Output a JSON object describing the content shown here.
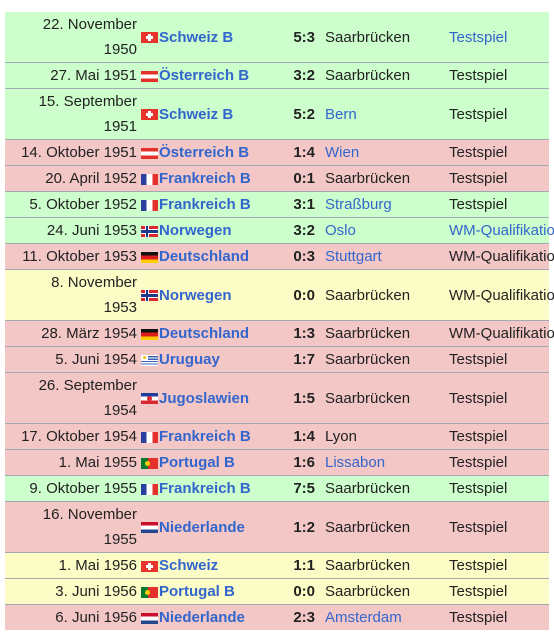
{
  "matches": [
    {
      "date_line1": "22. November",
      "date_line2": "1950",
      "flag": "switzerland-flag-icon",
      "opponent": "Schweiz B",
      "score": "5:3",
      "venue": "Saarbrücken",
      "venue_link": false,
      "type": "Testspiel",
      "type_link": true,
      "result": "win"
    },
    {
      "date_line1": "27. Mai 1951",
      "date_line2": "",
      "flag": "austria-flag-icon",
      "opponent": "Österreich B",
      "score": "3:2",
      "venue": "Saarbrücken",
      "venue_link": false,
      "type": "Testspiel",
      "type_link": false,
      "result": "win"
    },
    {
      "date_line1": "15. September",
      "date_line2": "1951",
      "flag": "switzerland-flag-icon",
      "opponent": "Schweiz B",
      "score": "5:2",
      "venue": "Bern",
      "venue_link": true,
      "type": "Testspiel",
      "type_link": false,
      "result": "win"
    },
    {
      "date_line1": "14. Oktober 1951",
      "date_line2": "",
      "flag": "austria-flag-icon",
      "opponent": "Österreich B",
      "score": "1:4",
      "venue": "Wien",
      "venue_link": true,
      "type": "Testspiel",
      "type_link": false,
      "result": "loss"
    },
    {
      "date_line1": "20. April 1952",
      "date_line2": "",
      "flag": "france-flag-icon",
      "opponent": "Frankreich B",
      "score": "0:1",
      "venue": "Saarbrücken",
      "venue_link": false,
      "type": "Testspiel",
      "type_link": false,
      "result": "loss"
    },
    {
      "date_line1": "5. Oktober 1952",
      "date_line2": "",
      "flag": "france-flag-icon",
      "opponent": "Frankreich B",
      "score": "3:1",
      "venue": "Straßburg",
      "venue_link": true,
      "type": "Testspiel",
      "type_link": false,
      "result": "win"
    },
    {
      "date_line1": "24. Juni 1953",
      "date_line2": "",
      "flag": "norway-flag-icon",
      "opponent": "Norwegen",
      "score": "3:2",
      "venue": "Oslo",
      "venue_link": true,
      "type": "WM-Qualifikation",
      "type_link": true,
      "result": "win"
    },
    {
      "date_line1": "11. Oktober 1953",
      "date_line2": "",
      "flag": "germany-flag-icon",
      "opponent": "Deutschland",
      "score": "0:3",
      "venue": "Stuttgart",
      "venue_link": true,
      "type": "WM-Qualifikation",
      "type_link": false,
      "result": "loss"
    },
    {
      "date_line1": "8. November",
      "date_line2": "1953",
      "flag": "norway-flag-icon",
      "opponent": "Norwegen",
      "score": "0:0",
      "venue": "Saarbrücken",
      "venue_link": false,
      "type": "WM-Qualifikation",
      "type_link": false,
      "result": "draw"
    },
    {
      "date_line1": "28. März 1954",
      "date_line2": "",
      "flag": "germany-flag-icon",
      "opponent": "Deutschland",
      "score": "1:3",
      "venue": "Saarbrücken",
      "venue_link": false,
      "type": "WM-Qualifikation",
      "type_link": false,
      "result": "loss"
    },
    {
      "date_line1": "5. Juni 1954",
      "date_line2": "",
      "flag": "uruguay-flag-icon",
      "opponent": "Uruguay",
      "score": "1:7",
      "venue": "Saarbrücken",
      "venue_link": false,
      "type": "Testspiel",
      "type_link": false,
      "result": "loss"
    },
    {
      "date_line1": "26. September",
      "date_line2": "1954",
      "flag": "yugoslavia-flag-icon",
      "opponent": "Jugoslawien",
      "score": "1:5",
      "venue": "Saarbrücken",
      "venue_link": false,
      "type": "Testspiel",
      "type_link": false,
      "result": "loss"
    },
    {
      "date_line1": "17. Oktober 1954",
      "date_line2": "",
      "flag": "france-flag-icon",
      "opponent": "Frankreich B",
      "score": "1:4",
      "venue": "Lyon",
      "venue_link": false,
      "type": "Testspiel",
      "type_link": false,
      "result": "loss"
    },
    {
      "date_line1": "1. Mai 1955",
      "date_line2": "",
      "flag": "portugal-flag-icon",
      "opponent": "Portugal B",
      "score": "1:6",
      "venue": "Lissabon",
      "venue_link": true,
      "type": "Testspiel",
      "type_link": false,
      "result": "loss"
    },
    {
      "date_line1": "9. Oktober 1955",
      "date_line2": "",
      "flag": "france-flag-icon",
      "opponent": "Frankreich B",
      "score": "7:5",
      "venue": "Saarbrücken",
      "venue_link": false,
      "type": "Testspiel",
      "type_link": false,
      "result": "win"
    },
    {
      "date_line1": "16. November",
      "date_line2": "1955",
      "flag": "netherlands-flag-icon",
      "opponent": "Niederlande",
      "score": "1:2",
      "venue": "Saarbrücken",
      "venue_link": false,
      "type": "Testspiel",
      "type_link": false,
      "result": "loss"
    },
    {
      "date_line1": "1. Mai 1956",
      "date_line2": "",
      "flag": "switzerland-flag-icon",
      "opponent": "Schweiz",
      "score": "1:1",
      "venue": "Saarbrücken",
      "venue_link": false,
      "type": "Testspiel",
      "type_link": false,
      "result": "draw"
    },
    {
      "date_line1": "3. Juni 1956",
      "date_line2": "",
      "flag": "portugal-flag-icon",
      "opponent": "Portugal B",
      "score": "0:0",
      "venue": "Saarbrücken",
      "venue_link": false,
      "type": "Testspiel",
      "type_link": false,
      "result": "draw"
    },
    {
      "date_line1": "6. Juni 1956",
      "date_line2": "",
      "flag": "netherlands-flag-icon",
      "opponent": "Niederlande",
      "score": "2:3",
      "venue": "Amsterdam",
      "venue_link": true,
      "type": "Testspiel",
      "type_link": false,
      "result": "loss"
    }
  ],
  "colors": {
    "win": "#ccffcc",
    "loss": "#f4c7c7",
    "draw": "#fcfcc6",
    "link": "#3366cc"
  }
}
